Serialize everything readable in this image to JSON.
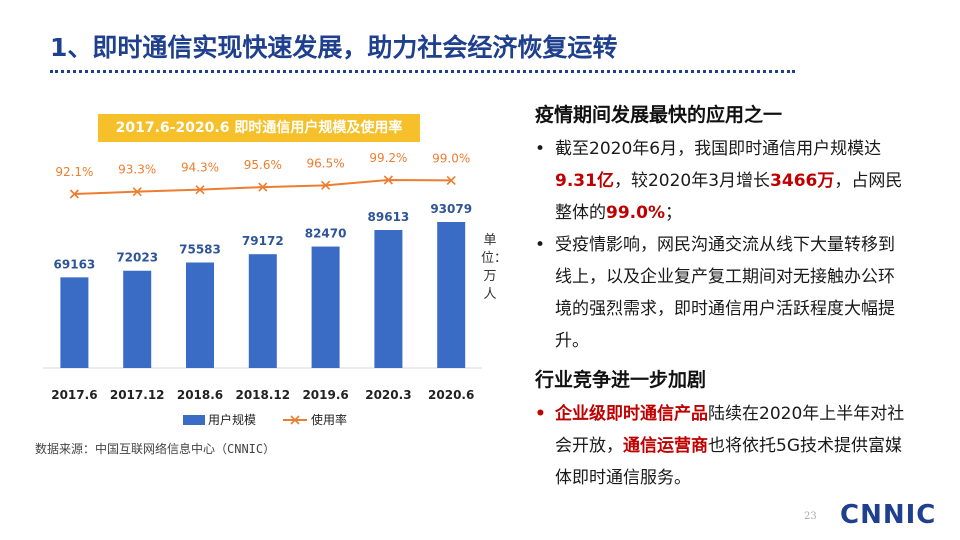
{
  "header": {
    "title": "1、即时通信实现快速发展，助力社会经济恢复运转"
  },
  "chart_data": {
    "type": "bar",
    "title": "2017.6-2020.6 即时通信用户规模及使用率",
    "categories": [
      "2017.6",
      "2017.12",
      "2018.6",
      "2018.12",
      "2019.6",
      "2020.3",
      "2020.6"
    ],
    "series": [
      {
        "name": "用户规模",
        "type": "bar",
        "values": [
          69163,
          72023,
          75583,
          79172,
          82470,
          89613,
          93079
        ],
        "color": "#3a6cc6"
      },
      {
        "name": "使用率",
        "type": "line",
        "values": [
          92.1,
          93.3,
          94.3,
          95.6,
          96.5,
          99.2,
          99.0
        ],
        "labels": [
          "92.1%",
          "93.3%",
          "94.3%",
          "95.6%",
          "96.5%",
          "99.2%",
          "99.0%"
        ],
        "color": "#ed7d31"
      }
    ],
    "bar_labels": [
      "69163",
      "72023",
      "75583",
      "79172",
      "82470",
      "89613",
      "93079"
    ],
    "legend_position": "bottom",
    "ylabel": "单位：万人",
    "grid": false
  },
  "unit_label": "单位：万人",
  "source": "数据来源：中国互联网络信息中心（CNNIC）",
  "right": {
    "section1_title": "疫情期间发展最快的应用之一",
    "b1": {
      "mark": "•",
      "t1": "截至2020年6月，我国即时通信用户规模达",
      "r1": "9.31亿",
      "t2": "，较2020年3月增长",
      "r2": "3466万",
      "t3": "，占网民整体的",
      "r3": "99.0%",
      "t4": "；"
    },
    "b2": {
      "mark": "•",
      "text": "受疫情影响，网民沟通交流从线下大量转移到线上，以及企业复产复工期间对无接触办公环境的强烈需求，即时通信用户活跃程度大幅提升。"
    },
    "section2_title": "行业竞争进一步加剧",
    "b3": {
      "mark": "•",
      "r1": "企业级即时通信产品",
      "t1": "陆续在2020年上半年对社会开放，",
      "r2": "通信运营商",
      "t2": "也将依托5G技术提供富媒体即时通信服务。"
    }
  },
  "footer": {
    "page": "23",
    "logo": "CNNIC"
  },
  "colors": {
    "title": "#1f3f8f",
    "bar": "#3a6cc6",
    "line": "#ed7d31",
    "highlight": "#c00000",
    "chart_title_bg": "#f5c02a"
  }
}
